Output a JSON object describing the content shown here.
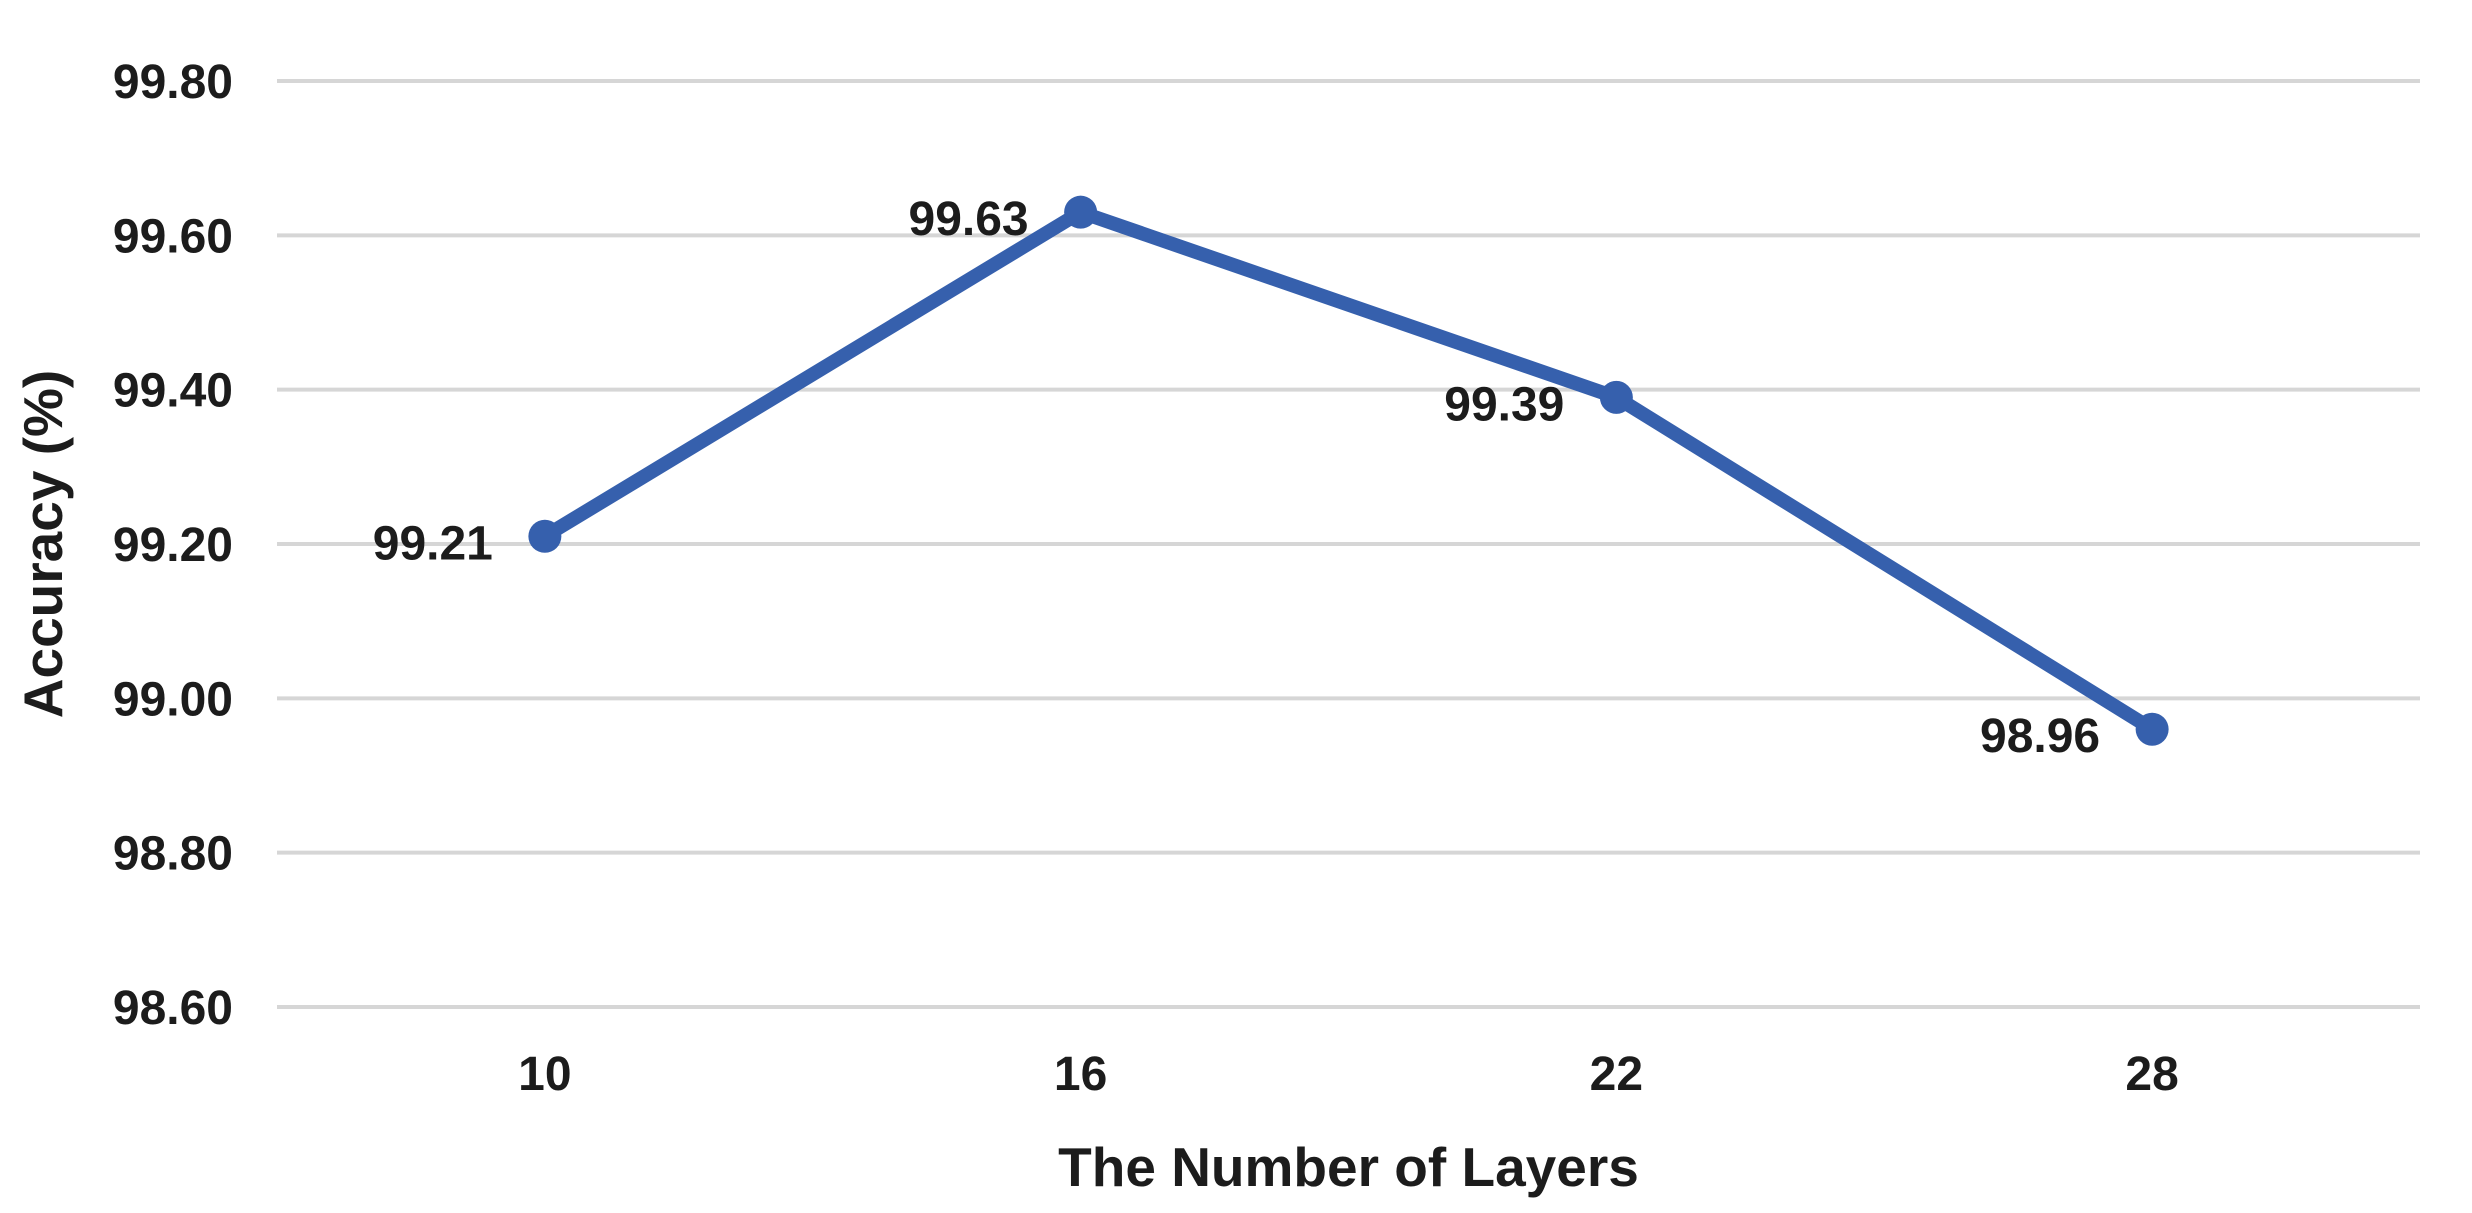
{
  "chart_data": {
    "type": "line",
    "title": "",
    "xlabel": "The Number of Layers",
    "ylabel": "Accuracy (%)",
    "categories": [
      "10",
      "16",
      "22",
      "28"
    ],
    "series": [
      {
        "name": "Accuracy (%)",
        "values": [
          99.21,
          99.63,
          99.39,
          98.96
        ]
      }
    ],
    "data_labels": [
      "99.21",
      "99.63",
      "99.39",
      "98.96"
    ],
    "y_ticks": [
      99.8,
      99.6,
      99.4,
      99.2,
      99.0,
      98.8,
      98.6
    ],
    "y_tick_labels": [
      "99.80",
      "99.60",
      "99.40",
      "99.20",
      "99.00",
      "98.80",
      "98.60"
    ],
    "ylim": [
      98.6,
      99.8
    ],
    "grid": true,
    "legend": "none",
    "colors": {
      "line": "#3660ad",
      "marker": "#3660ad",
      "gridline": "#d6d6d6",
      "text": "#1c1c1c",
      "background": "#ffffff"
    }
  }
}
